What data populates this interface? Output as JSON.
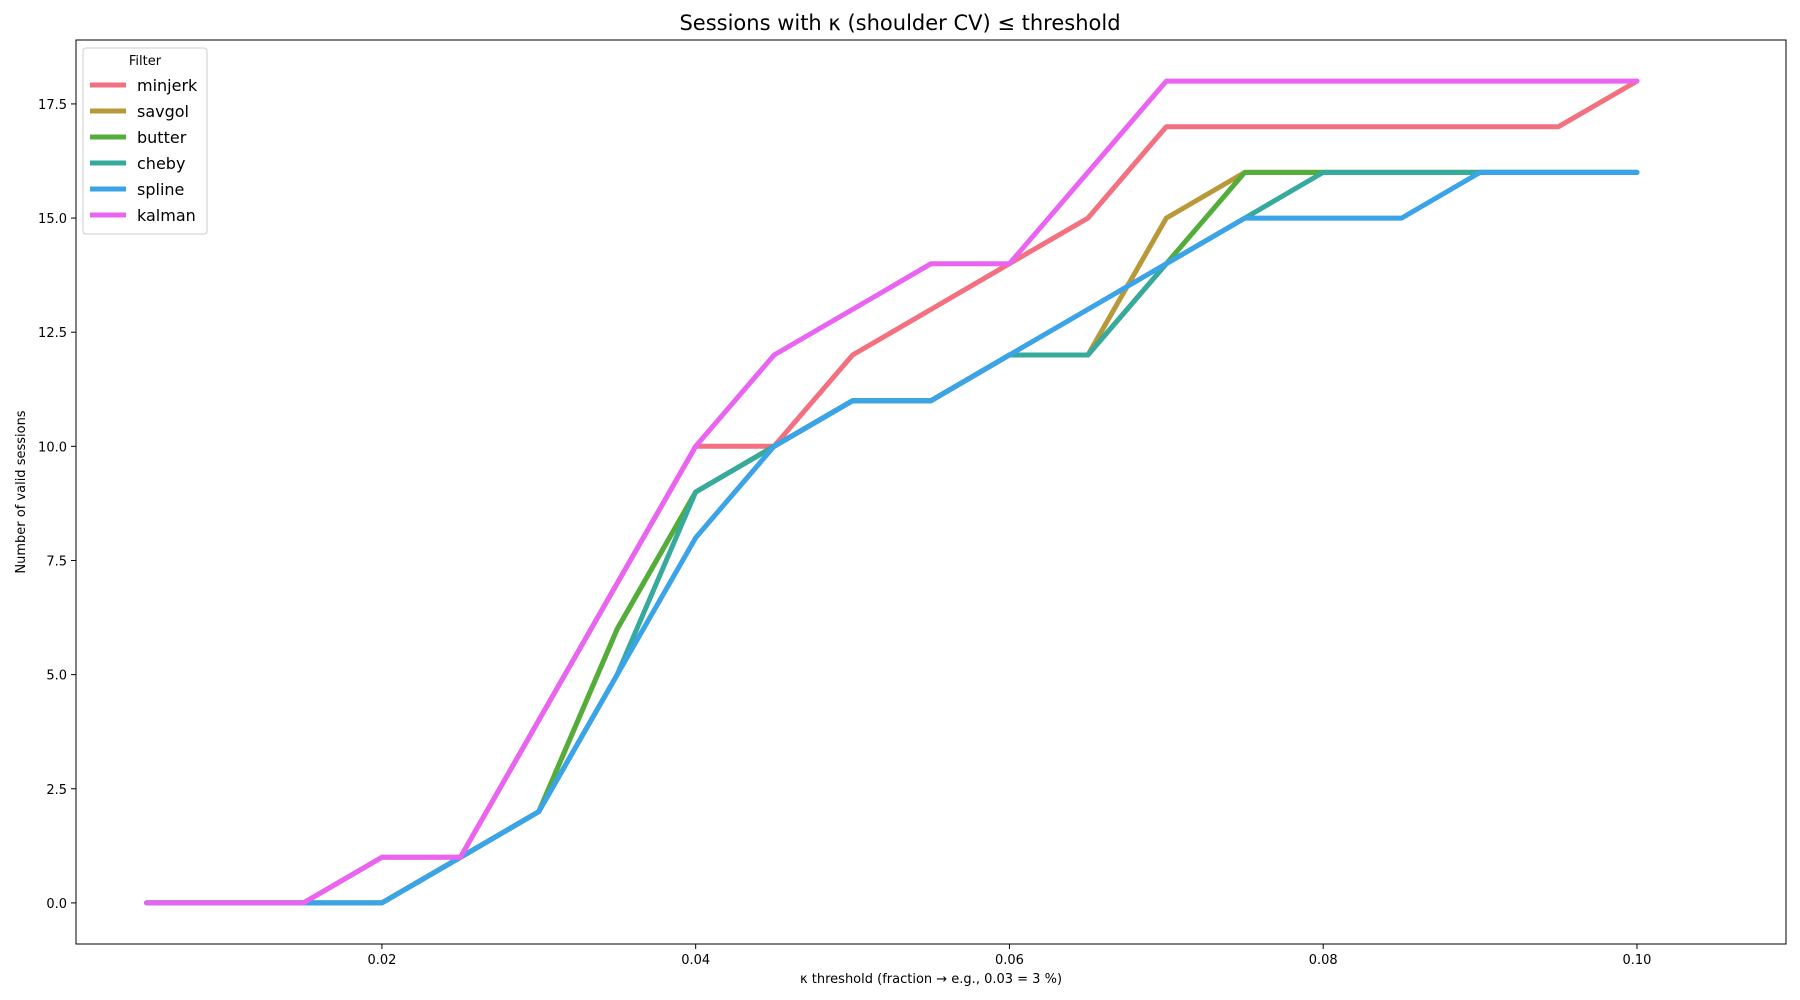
{
  "chart_data": {
    "type": "line",
    "title": "Sessions with κ (shoulder CV) ≤ threshold",
    "xlabel": "κ threshold (fraction → e.g., 0.03 = 3 %)",
    "ylabel": "Number of valid sessions",
    "xlim": [
      0.0005,
      0.1095
    ],
    "ylim": [
      -0.9,
      18.9
    ],
    "xticks": [
      "0.02",
      "0.04",
      "0.06",
      "0.08",
      "0.10"
    ],
    "yticks": [
      "0.0",
      "2.5",
      "5.0",
      "7.5",
      "10.0",
      "12.5",
      "15.0",
      "17.5"
    ],
    "grid": false,
    "legend": {
      "title": "Filter",
      "placement": "top-left"
    },
    "x": [
      0.005,
      0.01,
      0.015,
      0.02,
      0.025,
      0.03,
      0.035,
      0.04,
      0.045,
      0.05,
      0.055,
      0.06,
      0.065,
      0.07,
      0.075,
      0.08,
      0.085,
      0.09,
      0.095,
      0.1
    ],
    "series": [
      {
        "name": "minjerk",
        "color": "#f2707f",
        "values": [
          0,
          0,
          0,
          1,
          1,
          4,
          7,
          10,
          10,
          12,
          13,
          14,
          15,
          17,
          17,
          17,
          17,
          17,
          17,
          18
        ]
      },
      {
        "name": "savgol",
        "color": "#b8993a",
        "values": [
          0,
          0,
          0,
          0,
          1,
          2,
          6,
          9,
          10,
          11,
          11,
          12,
          12,
          15,
          16,
          16,
          16,
          16,
          16,
          16
        ]
      },
      {
        "name": "butter",
        "color": "#53ad3a",
        "values": [
          0,
          0,
          0,
          0,
          1,
          2,
          6,
          9,
          10,
          11,
          11,
          12,
          12,
          14,
          16,
          16,
          16,
          16,
          16,
          16
        ]
      },
      {
        "name": "cheby",
        "color": "#36ab9d",
        "values": [
          0,
          0,
          0,
          0,
          1,
          2,
          5,
          9,
          10,
          11,
          11,
          12,
          12,
          14,
          15,
          16,
          16,
          16,
          16,
          16
        ]
      },
      {
        "name": "spline",
        "color": "#3ba3e8",
        "values": [
          0,
          0,
          0,
          0,
          1,
          2,
          5,
          8,
          10,
          11,
          11,
          12,
          13,
          14,
          15,
          15,
          15,
          16,
          16,
          16
        ]
      },
      {
        "name": "kalman",
        "color": "#ea64f2",
        "values": [
          0,
          0,
          0,
          1,
          1,
          4,
          7,
          10,
          12,
          13,
          14,
          14,
          16,
          18,
          18,
          18,
          18,
          18,
          18,
          18
        ]
      }
    ]
  }
}
